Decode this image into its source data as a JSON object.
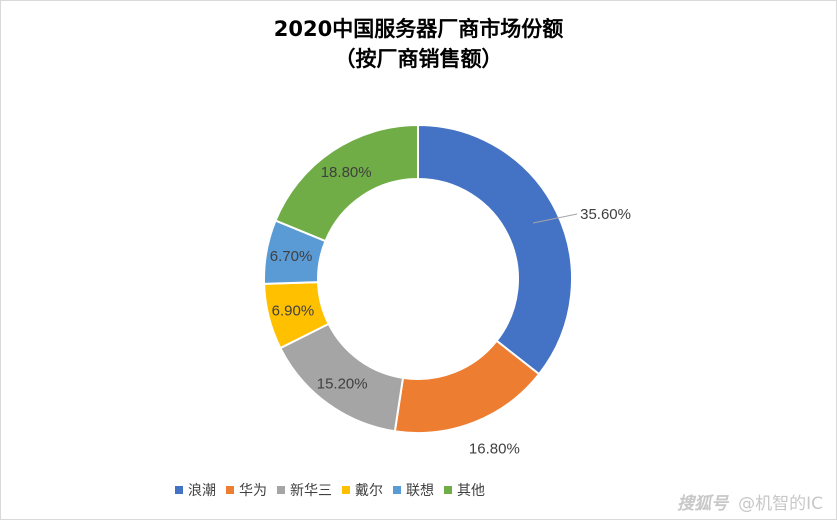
{
  "chart_data": {
    "type": "pie",
    "variant": "donut",
    "title_lines": [
      "2020中国服务器厂商市场份额",
      "（按厂商销售额）"
    ],
    "categories": [
      "浪潮",
      "华为",
      "新华三",
      "戴尔",
      "联想",
      "其他"
    ],
    "values": [
      35.6,
      16.8,
      15.2,
      6.9,
      6.7,
      18.8
    ],
    "labels": [
      "35.60%",
      "16.80%",
      "15.20%",
      "6.90%",
      "6.70%",
      "18.80%"
    ],
    "colors": [
      "#4472C4",
      "#ED7D31",
      "#A5A5A5",
      "#FFC000",
      "#5B9BD5",
      "#70AD47"
    ],
    "legend_position": "bottom"
  },
  "watermark": {
    "logo": "搜狐号",
    "text": "@机智的IC"
  }
}
